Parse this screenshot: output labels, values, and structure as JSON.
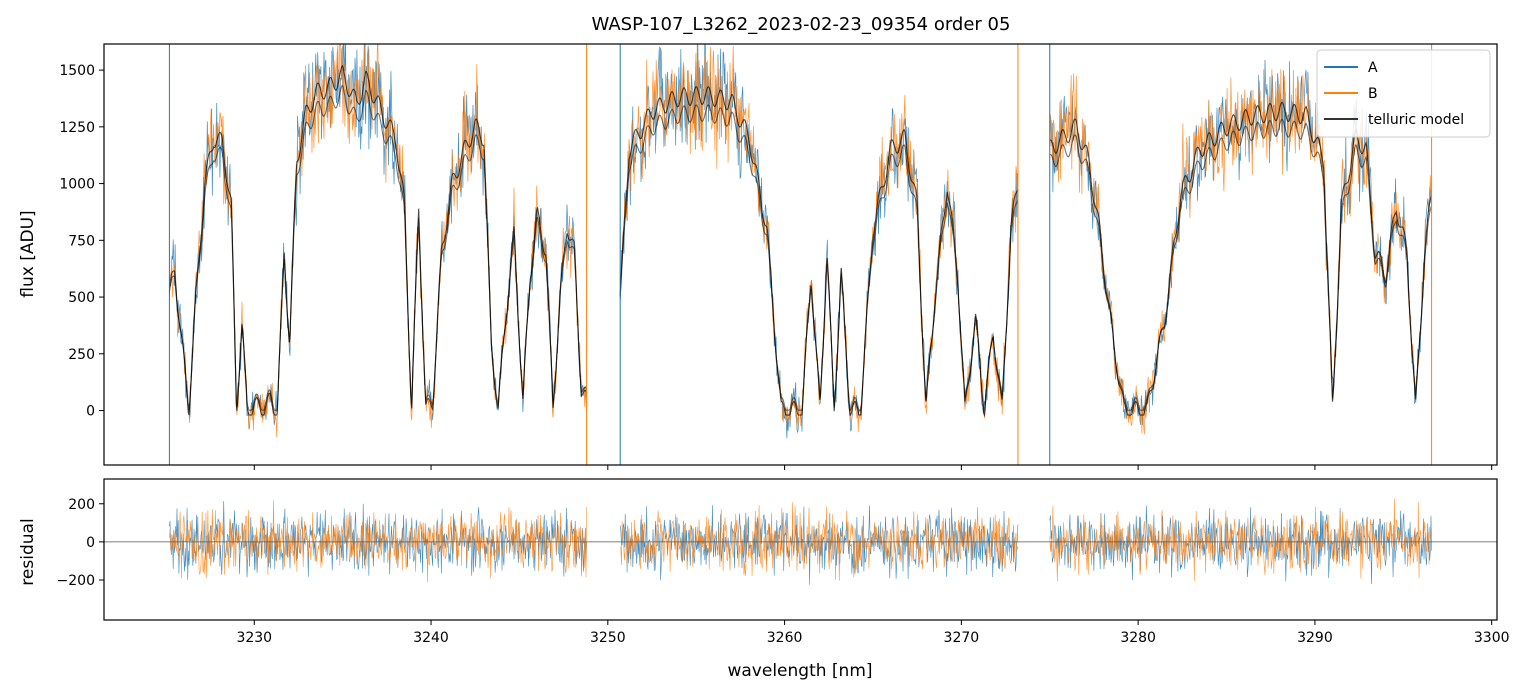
{
  "chart_data": [
    {
      "type": "line",
      "panel": "top",
      "title": "WASP-107_L3262_2023-02-23_09354  order 05",
      "xlabel": "",
      "ylabel": "flux [ADU]",
      "xlim": [
        3221.5,
        3300.3
      ],
      "ylim": [
        -240,
        1615
      ],
      "yticks": [
        0,
        250,
        500,
        750,
        1000,
        1250,
        1500
      ],
      "ytick_labels": [
        "0",
        "250",
        "500",
        "750",
        "1000",
        "1250",
        "1500"
      ],
      "segments": [
        [
          3225.2,
          3248.8
        ],
        [
          3250.7,
          3273.2
        ],
        [
          3275.0,
          3296.6
        ]
      ],
      "legend": {
        "position": "top-right",
        "entries": [
          "A",
          "B",
          "telluric model"
        ]
      },
      "series": [
        {
          "name": "telluric model",
          "color": "#000000",
          "note": "approximate envelope of the model (segmented, two nearly overlapping traces)",
          "x": [
            3225.2,
            3225.5,
            3225.9,
            3226.3,
            3226.7,
            3227.2,
            3227.7,
            3228.2,
            3228.7,
            3229.0,
            3229.3,
            3229.6,
            3230.0,
            3230.5,
            3230.9,
            3231.3,
            3231.7,
            3232.0,
            3232.4,
            3232.9,
            3233.5,
            3234.2,
            3235.0,
            3235.8,
            3236.3,
            3236.7,
            3237.3,
            3238.0,
            3238.5,
            3238.9,
            3239.3,
            3239.7,
            3240.1,
            3240.6,
            3241.2,
            3241.9,
            3242.5,
            3243.0,
            3243.4,
            3243.8,
            3244.2,
            3244.7,
            3245.2,
            3245.6,
            3246.0,
            3246.5,
            3246.9,
            3247.3,
            3247.7,
            3248.1,
            3248.5,
            3248.8
          ],
          "y": [
            520,
            620,
            300,
            0,
            500,
            1000,
            1200,
            1180,
            900,
            0,
            380,
            0,
            20,
            10,
            40,
            0,
            700,
            300,
            1100,
            1300,
            1400,
            1420,
            1480,
            1350,
            1460,
            1400,
            1300,
            1200,
            900,
            0,
            900,
            0,
            40,
            700,
            1000,
            1150,
            1250,
            1200,
            300,
            0,
            400,
            780,
            30,
            600,
            860,
            700,
            10,
            500,
            820,
            700,
            100,
            40
          ]
        }
      ]
    },
    {
      "type": "line",
      "panel": "bottom",
      "title": "",
      "xlabel": "wavelength [nm]",
      "ylabel": "residual",
      "xlim": [
        3221.5,
        3300.3
      ],
      "ylim": [
        -410,
        330
      ],
      "xticks": [
        3230,
        3240,
        3250,
        3260,
        3270,
        3280,
        3290,
        3300
      ],
      "xtick_labels": [
        "3230",
        "3240",
        "3250",
        "3260",
        "3270",
        "3280",
        "3290",
        "3300"
      ],
      "yticks": [
        -200,
        0,
        200
      ],
      "ytick_labels": [
        "−200",
        "0",
        "200"
      ],
      "residual_amplitude": 200,
      "series": [
        {
          "name": "A",
          "color": "#1f77b4"
        },
        {
          "name": "B",
          "color": "#ff7f0e"
        }
      ]
    }
  ]
}
